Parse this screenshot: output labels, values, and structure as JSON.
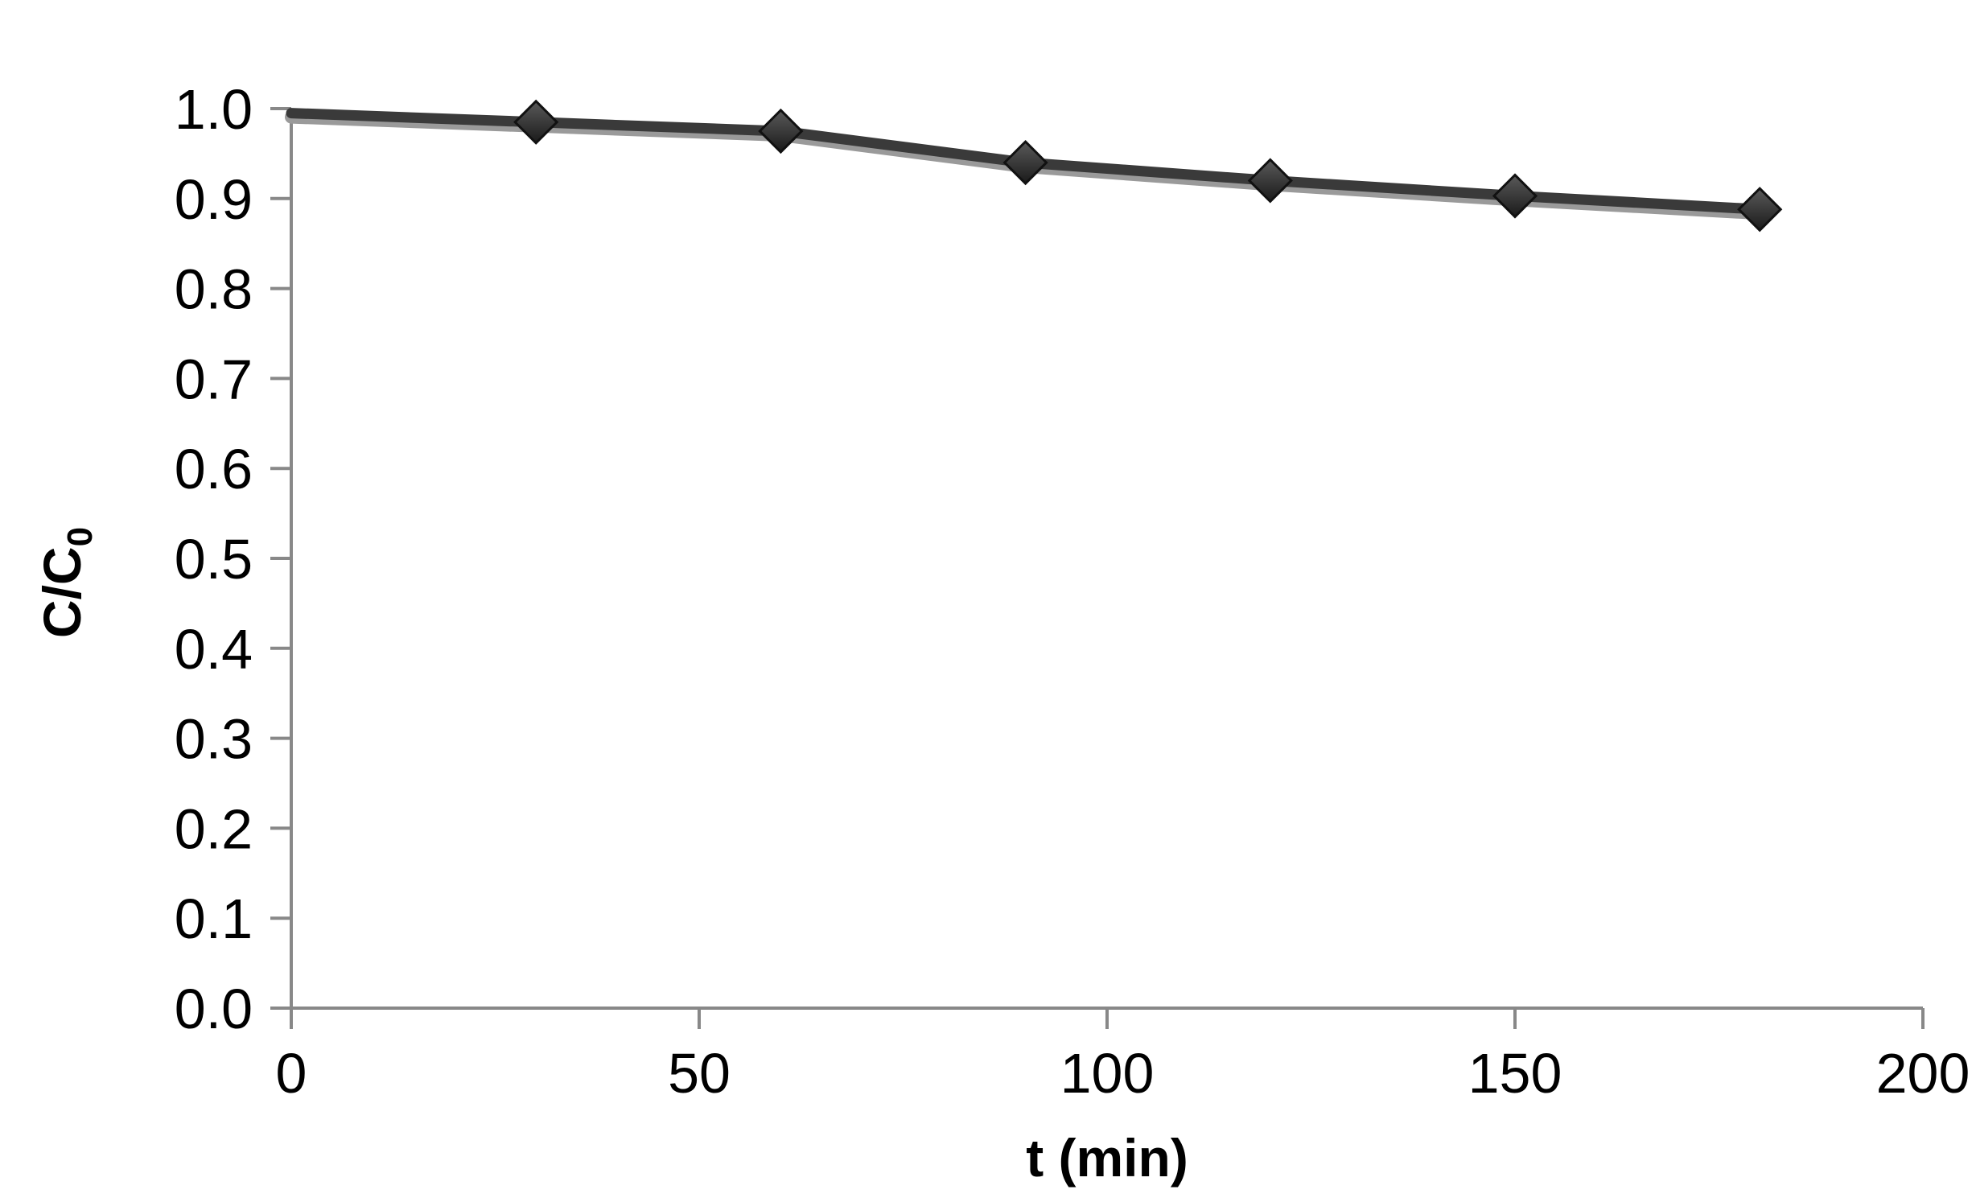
{
  "chart_data": {
    "type": "line",
    "title": "",
    "xlabel": "t (min)",
    "ylabel_main": "C/C",
    "ylabel_sub": "0",
    "xlim": [
      0,
      200
    ],
    "ylim": [
      0.0,
      1.0
    ],
    "x_ticks": [
      0,
      50,
      100,
      150,
      200
    ],
    "x_tick_labels": [
      "0",
      "50",
      "100",
      "150",
      "200"
    ],
    "y_ticks": [
      0.0,
      0.1,
      0.2,
      0.3,
      0.4,
      0.5,
      0.6,
      0.7,
      0.8,
      0.9,
      1.0
    ],
    "y_tick_labels": [
      "0.0",
      "0.1",
      "0.2",
      "0.3",
      "0.4",
      "0.5",
      "0.6",
      "0.7",
      "0.8",
      "0.9",
      "1.0"
    ],
    "grid": false,
    "legend": "none",
    "line_color": "#3a3a3a",
    "marker": "diamond",
    "marker_color": "#2a2a2a",
    "series": [
      {
        "x": [
          0,
          30,
          60,
          90,
          120,
          150,
          180
        ],
        "y": [
          0.995,
          0.985,
          0.975,
          0.94,
          0.92,
          0.903,
          0.888
        ]
      }
    ]
  }
}
